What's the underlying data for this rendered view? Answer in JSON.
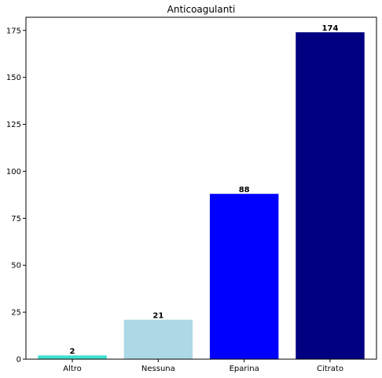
{
  "chart_data": {
    "type": "bar",
    "title": "Anticoagulanti",
    "xlabel": "",
    "ylabel": "",
    "categories": [
      "Altro",
      "Nessuna",
      "Eparina",
      "Citrato"
    ],
    "values": [
      2,
      21,
      88,
      174
    ],
    "colors": [
      "#40e0d0",
      "#add8e6",
      "#0000ff",
      "#000080"
    ],
    "ylim": [
      0,
      182
    ],
    "yticks": [
      0,
      25,
      50,
      75,
      100,
      125,
      150,
      175
    ],
    "grid": false,
    "legend": "none"
  }
}
